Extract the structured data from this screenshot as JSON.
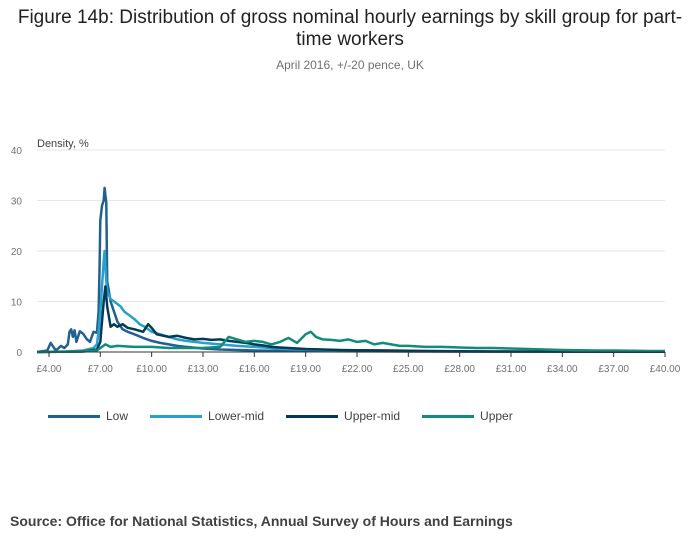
{
  "chart_data": {
    "type": "line",
    "title": "Figure 14b: Distribution of gross nominal hourly earnings by skill group for part-time workers",
    "subtitle": "April 2016, +/-20 pence, UK",
    "ylabel": "Density, %",
    "xlabel": "",
    "ylim": [
      0,
      40
    ],
    "xlim": [
      3.3,
      40.0
    ],
    "y_ticks": [
      0,
      10,
      20,
      30,
      40
    ],
    "x_ticks": [
      4,
      7,
      10,
      13,
      16,
      19,
      22,
      25,
      28,
      31,
      34,
      37,
      40
    ],
    "x_tick_labels": [
      "£4.00",
      "£7.00",
      "£10.00",
      "£13.00",
      "£16.00",
      "£19.00",
      "£22.00",
      "£25.00",
      "£28.00",
      "£31.00",
      "£34.00",
      "£37.00",
      "£40.00"
    ],
    "grid": true,
    "legend_position": "bottom",
    "series": [
      {
        "name": "Low",
        "color": "#206095",
        "points": [
          [
            3.3,
            0
          ],
          [
            3.9,
            0.3
          ],
          [
            4.1,
            1.8
          ],
          [
            4.4,
            0.3
          ],
          [
            4.7,
            1.2
          ],
          [
            4.9,
            0.8
          ],
          [
            5.1,
            1.5
          ],
          [
            5.2,
            4.0
          ],
          [
            5.3,
            4.5
          ],
          [
            5.4,
            3.0
          ],
          [
            5.5,
            4.3
          ],
          [
            5.6,
            2.0
          ],
          [
            5.8,
            4.1
          ],
          [
            6.0,
            3.6
          ],
          [
            6.2,
            2.6
          ],
          [
            6.4,
            2.0
          ],
          [
            6.6,
            4.0
          ],
          [
            6.8,
            3.8
          ],
          [
            6.9,
            8.0
          ],
          [
            6.95,
            16
          ],
          [
            7.0,
            26
          ],
          [
            7.1,
            29
          ],
          [
            7.2,
            30
          ],
          [
            7.25,
            32.5
          ],
          [
            7.3,
            31
          ],
          [
            7.35,
            29.5
          ],
          [
            7.4,
            14
          ],
          [
            7.6,
            10
          ],
          [
            7.8,
            8
          ],
          [
            8.0,
            6
          ],
          [
            8.3,
            4.5
          ],
          [
            8.6,
            4.0
          ],
          [
            9.0,
            3.5
          ],
          [
            9.5,
            2.8
          ],
          [
            10.0,
            2.2
          ],
          [
            10.5,
            1.8
          ],
          [
            11,
            1.5
          ],
          [
            11.5,
            1.2
          ],
          [
            12,
            1.0
          ],
          [
            13,
            0.7
          ],
          [
            14,
            0.5
          ],
          [
            15,
            0.4
          ],
          [
            16,
            0.3
          ],
          [
            18,
            0.2
          ],
          [
            20,
            0.15
          ],
          [
            25,
            0.1
          ],
          [
            30,
            0.05
          ],
          [
            40,
            0.05
          ]
        ]
      },
      {
        "name": "Lower-mid",
        "color": "#27a0cc",
        "points": [
          [
            3.3,
            0
          ],
          [
            5.0,
            0.1
          ],
          [
            6.0,
            0.3
          ],
          [
            6.6,
            0.8
          ],
          [
            6.8,
            1.5
          ],
          [
            6.9,
            4
          ],
          [
            7.0,
            8
          ],
          [
            7.1,
            13
          ],
          [
            7.2,
            18
          ],
          [
            7.25,
            20
          ],
          [
            7.3,
            17
          ],
          [
            7.35,
            14
          ],
          [
            7.4,
            12
          ],
          [
            7.6,
            10.5
          ],
          [
            7.8,
            10
          ],
          [
            8.0,
            9.5
          ],
          [
            8.2,
            9
          ],
          [
            8.4,
            8
          ],
          [
            8.6,
            7.5
          ],
          [
            8.8,
            7
          ],
          [
            9.0,
            6.5
          ],
          [
            9.3,
            5.5
          ],
          [
            9.6,
            5.0
          ],
          [
            10.0,
            4.0
          ],
          [
            10.5,
            3.5
          ],
          [
            11.0,
            3.0
          ],
          [
            11.5,
            2.5
          ],
          [
            12,
            2.2
          ],
          [
            12.5,
            2.0
          ],
          [
            13,
            1.8
          ],
          [
            14,
            1.5
          ],
          [
            15,
            1.2
          ],
          [
            16,
            1.0
          ],
          [
            17,
            0.8
          ],
          [
            18,
            0.6
          ],
          [
            19,
            0.5
          ],
          [
            20,
            0.4
          ],
          [
            22,
            0.3
          ],
          [
            25,
            0.2
          ],
          [
            30,
            0.1
          ],
          [
            35,
            0.05
          ],
          [
            40,
            0.05
          ]
        ]
      },
      {
        "name": "Upper-mid",
        "color": "#003c57",
        "points": [
          [
            3.3,
            0
          ],
          [
            6.0,
            0.1
          ],
          [
            6.8,
            0.5
          ],
          [
            7.0,
            2
          ],
          [
            7.1,
            6
          ],
          [
            7.2,
            10
          ],
          [
            7.3,
            13
          ],
          [
            7.35,
            11
          ],
          [
            7.4,
            9
          ],
          [
            7.5,
            7
          ],
          [
            7.6,
            5
          ],
          [
            7.8,
            5.5
          ],
          [
            8.0,
            5.0
          ],
          [
            8.3,
            5.5
          ],
          [
            8.6,
            4.8
          ],
          [
            9.0,
            4.5
          ],
          [
            9.5,
            4.0
          ],
          [
            9.8,
            5.5
          ],
          [
            10.0,
            4.8
          ],
          [
            10.3,
            3.5
          ],
          [
            10.7,
            3.2
          ],
          [
            11,
            3.0
          ],
          [
            11.5,
            3.2
          ],
          [
            12,
            2.8
          ],
          [
            12.5,
            2.5
          ],
          [
            13,
            2.6
          ],
          [
            13.5,
            2.4
          ],
          [
            14,
            2.5
          ],
          [
            14.5,
            2.2
          ],
          [
            15,
            2.0
          ],
          [
            15.5,
            1.8
          ],
          [
            16,
            1.5
          ],
          [
            16.5,
            1.3
          ],
          [
            17,
            1.0
          ],
          [
            17.5,
            0.9
          ],
          [
            18,
            0.8
          ],
          [
            19,
            0.6
          ],
          [
            20,
            0.5
          ],
          [
            21,
            0.4
          ],
          [
            22,
            0.35
          ],
          [
            24,
            0.3
          ],
          [
            26,
            0.2
          ],
          [
            28,
            0.15
          ],
          [
            30,
            0.1
          ],
          [
            35,
            0.05
          ],
          [
            40,
            0.05
          ]
        ]
      },
      {
        "name": "Upper",
        "color": "#118c7b",
        "points": [
          [
            3.3,
            0
          ],
          [
            6.0,
            0.1
          ],
          [
            6.8,
            0.3
          ],
          [
            7.0,
            0.8
          ],
          [
            7.3,
            1.5
          ],
          [
            7.6,
            1.0
          ],
          [
            8.0,
            1.2
          ],
          [
            9.0,
            1.0
          ],
          [
            10.0,
            1.0
          ],
          [
            11.0,
            0.8
          ],
          [
            12.0,
            0.8
          ],
          [
            13,
            0.8
          ],
          [
            14,
            1.0
          ],
          [
            14.5,
            3.0
          ],
          [
            15,
            2.5
          ],
          [
            15.5,
            2.0
          ],
          [
            16,
            2.2
          ],
          [
            16.5,
            2.0
          ],
          [
            17,
            1.5
          ],
          [
            17.5,
            2.0
          ],
          [
            18,
            2.8
          ],
          [
            18.5,
            1.8
          ],
          [
            19,
            3.5
          ],
          [
            19.3,
            4.0
          ],
          [
            19.6,
            3.0
          ],
          [
            20,
            2.5
          ],
          [
            20.5,
            2.4
          ],
          [
            21,
            2.2
          ],
          [
            21.5,
            2.5
          ],
          [
            22,
            2.0
          ],
          [
            22.5,
            2.2
          ],
          [
            23,
            1.5
          ],
          [
            23.5,
            1.8
          ],
          [
            24,
            1.5
          ],
          [
            24.5,
            1.2
          ],
          [
            25,
            1.2
          ],
          [
            26,
            1.0
          ],
          [
            27,
            1.0
          ],
          [
            28,
            0.9
          ],
          [
            29,
            0.8
          ],
          [
            30,
            0.8
          ],
          [
            31,
            0.7
          ],
          [
            32,
            0.6
          ],
          [
            33,
            0.5
          ],
          [
            34,
            0.4
          ],
          [
            35,
            0.35
          ],
          [
            36,
            0.3
          ],
          [
            37,
            0.3
          ],
          [
            38,
            0.25
          ],
          [
            39,
            0.2
          ],
          [
            40,
            0.2
          ]
        ]
      }
    ]
  },
  "source": "Source: Office for National Statistics, Annual Survey of Hours and Earnings"
}
